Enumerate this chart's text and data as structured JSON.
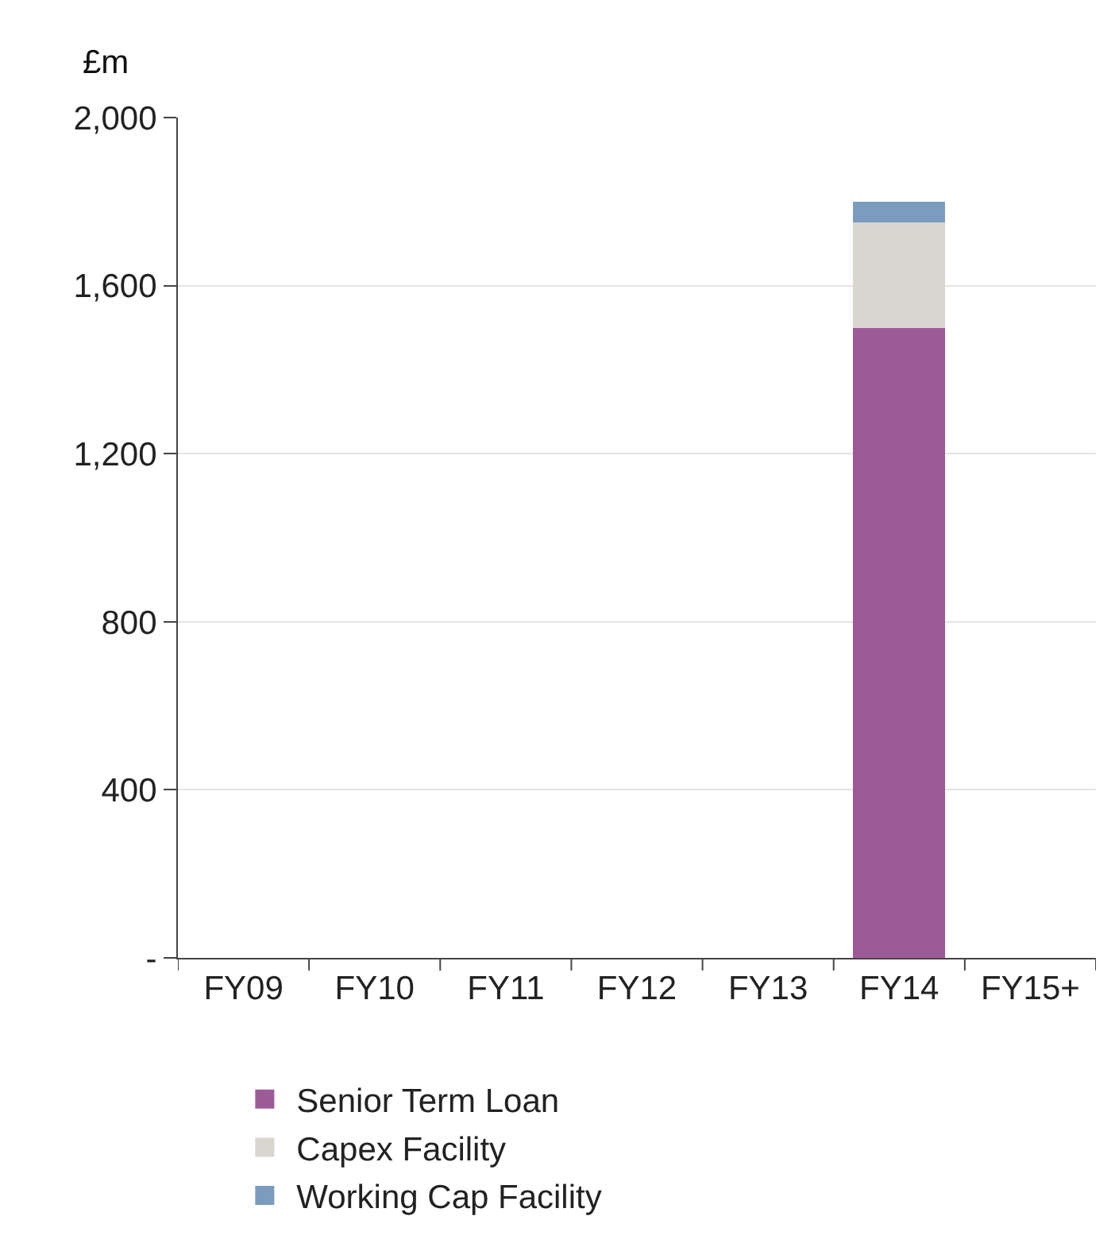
{
  "chart_data": {
    "type": "bar",
    "stacked": true,
    "ylabel": "£m",
    "categories": [
      "FY09",
      "FY10",
      "FY11",
      "FY12",
      "FY13",
      "FY14",
      "FY15+"
    ],
    "series": [
      {
        "name": "Senior Term Loan",
        "color": "#9c5b98",
        "values": [
          0,
          0,
          0,
          0,
          0,
          1500,
          0
        ]
      },
      {
        "name": "Capex Facility",
        "color": "#d9d5cf",
        "values": [
          0,
          0,
          0,
          0,
          0,
          250,
          0
        ]
      },
      {
        "name": "Working Cap Facility",
        "color": "#7b9cbc",
        "values": [
          0,
          0,
          0,
          0,
          0,
          50,
          0
        ]
      }
    ],
    "ylim": [
      0,
      2000
    ],
    "yticks": [
      {
        "value": 0,
        "label": "-"
      },
      {
        "value": 400,
        "label": "400"
      },
      {
        "value": 800,
        "label": "800"
      },
      {
        "value": 1200,
        "label": "1,200"
      },
      {
        "value": 1600,
        "label": "1,600"
      },
      {
        "value": 2000,
        "label": "2,000"
      }
    ],
    "grid": "y",
    "legend": "bottom"
  }
}
